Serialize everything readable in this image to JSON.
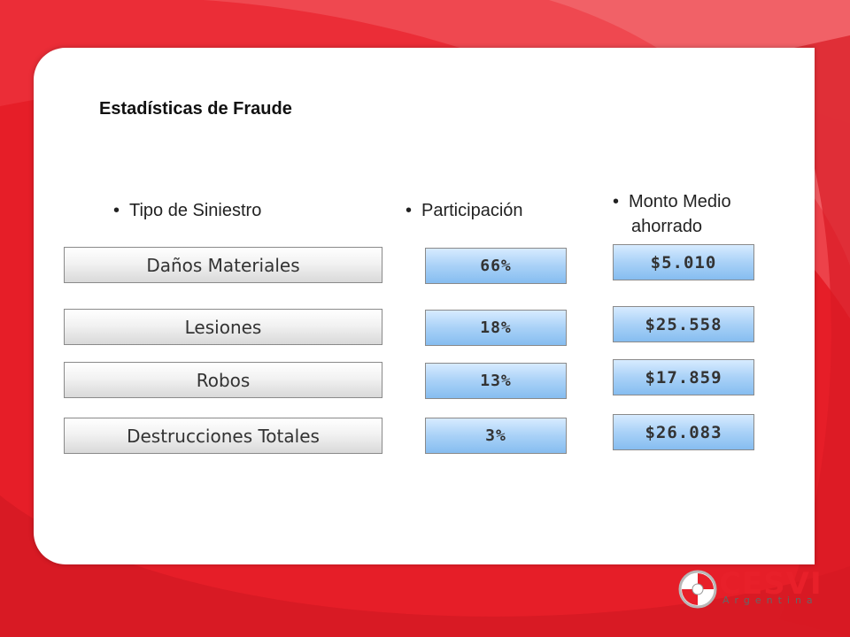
{
  "title": "Estadísticas de Fraude",
  "headers": {
    "tipo": "Tipo de Siniestro",
    "participacion": "Participación",
    "monto_line1": "Monto Medio",
    "monto_line2": "ahorrado",
    "bullet": "•"
  },
  "rows": [
    {
      "tipo": "Daños Materiales",
      "participacion": "66%",
      "monto": "$5.010"
    },
    {
      "tipo": "Lesiones",
      "participacion": "18%",
      "monto": "$25.558"
    },
    {
      "tipo": "Robos",
      "participacion": "13%",
      "monto": "$17.859"
    },
    {
      "tipo": "Destrucciones Totales",
      "participacion": "3%",
      "monto": "$26.083"
    }
  ],
  "logo": {
    "name": "CESVI",
    "subtitle": "Argentina"
  },
  "colors": {
    "brand_red": "#e8202a",
    "value_box_blue": "#a9d1f7",
    "type_box_gray": "#e6e6e6"
  }
}
